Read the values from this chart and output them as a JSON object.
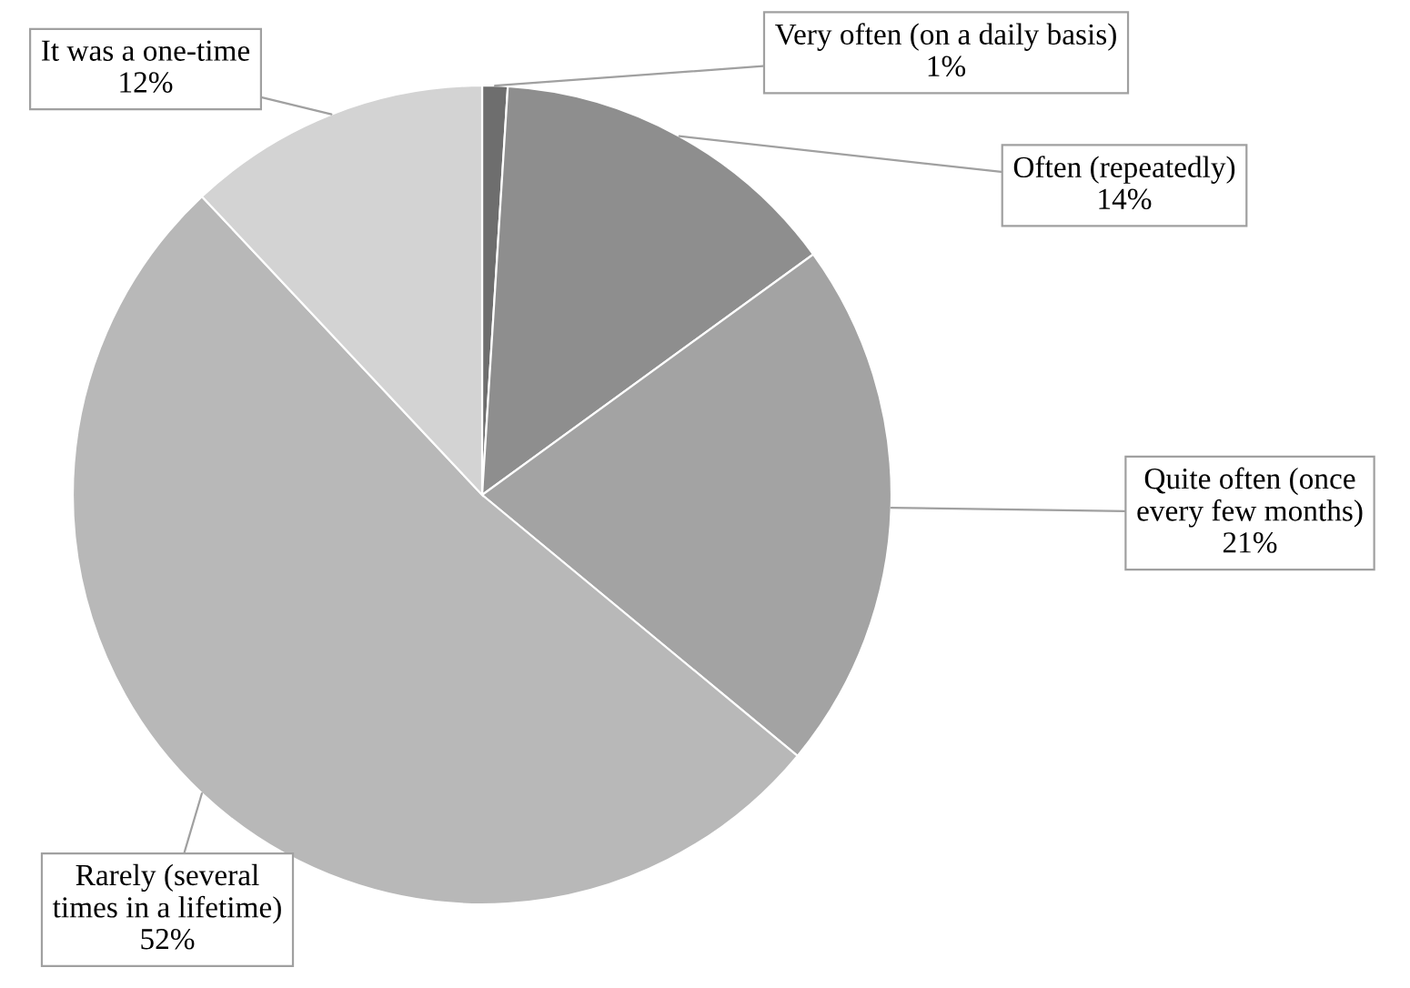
{
  "chart_data": {
    "type": "pie",
    "categories": [
      "Very often (on a daily basis)",
      "Often (repeatedly)",
      "Quite often (once every few months)",
      "Rarely (several times in a lifetime)",
      "It was a one-time"
    ],
    "values": [
      1,
      14,
      21,
      52,
      12
    ],
    "colors": [
      "#6e6e6e",
      "#8e8e8e",
      "#a3a3a3",
      "#b8b8b8",
      "#d3d3d3"
    ],
    "value_labels": [
      "1%",
      "14%",
      "21%",
      "52%",
      "12%"
    ]
  }
}
